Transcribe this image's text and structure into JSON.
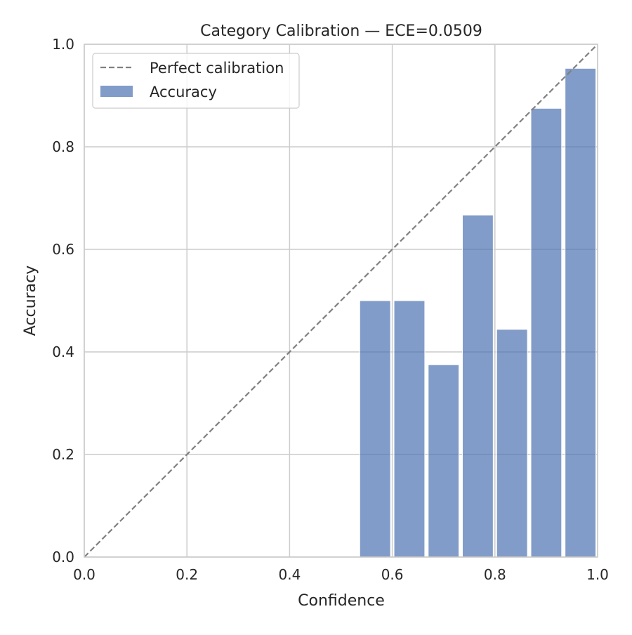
{
  "chart_data": {
    "type": "bar",
    "title": "Category Calibration — ECE=0.0509",
    "xlabel": "Confidence",
    "ylabel": "Accuracy",
    "xlim": [
      0,
      1
    ],
    "ylim": [
      0,
      1
    ],
    "grid": true,
    "legend_placement": "top-left",
    "x_ticks": [
      "0.0",
      "0.2",
      "0.4",
      "0.6",
      "0.8",
      "1.0"
    ],
    "y_ticks": [
      "0.0",
      "0.2",
      "0.4",
      "0.6",
      "0.8",
      "1.0"
    ],
    "n_bins": 15,
    "bins": [
      {
        "x0": 0.5333,
        "x1": 0.6,
        "accuracy": 0.5
      },
      {
        "x0": 0.6,
        "x1": 0.6667,
        "accuracy": 0.5
      },
      {
        "x0": 0.6667,
        "x1": 0.7333,
        "accuracy": 0.375
      },
      {
        "x0": 0.7333,
        "x1": 0.8,
        "accuracy": 0.667
      },
      {
        "x0": 0.8,
        "x1": 0.8667,
        "accuracy": 0.444
      },
      {
        "x0": 0.8667,
        "x1": 0.9333,
        "accuracy": 0.875
      },
      {
        "x0": 0.9333,
        "x1": 1.0,
        "accuracy": 0.953
      }
    ],
    "series": [
      {
        "name": "Perfect calibration",
        "type": "line",
        "style": "dashed",
        "color": "#808080",
        "x": [
          0,
          1
        ],
        "y": [
          0,
          1
        ]
      },
      {
        "name": "Accuracy",
        "type": "bar",
        "color": "#4c72b0",
        "alpha": 0.7
      }
    ]
  }
}
